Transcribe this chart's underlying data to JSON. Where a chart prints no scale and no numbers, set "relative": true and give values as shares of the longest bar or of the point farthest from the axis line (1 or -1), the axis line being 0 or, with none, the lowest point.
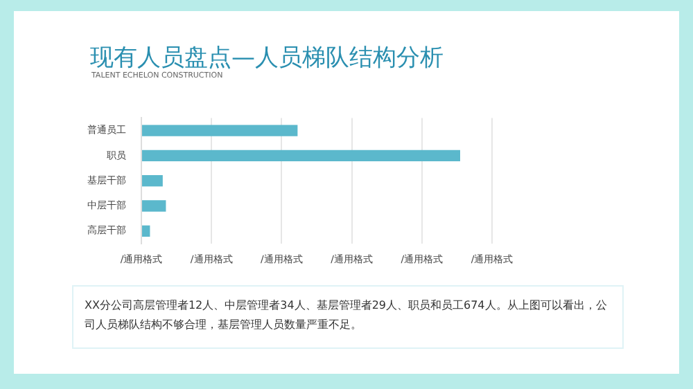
{
  "chart_data": {
    "type": "bar",
    "orientation": "horizontal",
    "relative": true,
    "title": "现有人员盘点—人员梯队结构分析",
    "subtitle": "TALENT ECHELON CONSTRUCTION",
    "categories": [
      "普通员工",
      "职员",
      "基层干部",
      "中层干部",
      "高层干部"
    ],
    "values": [
      0.49,
      1,
      0.067,
      0.077,
      0.027
    ],
    "color": "#5bb8cc",
    "grid": "x",
    "legend": false,
    "annotations": [
      "/通用格式",
      "/通用格式",
      "/通用格式",
      "/通用格式",
      "/通用格式",
      "/通用格式",
      "XX分公司高层管理者12人、中层管理者34人、基层管理者29人、职员和员工674人。从上图可以看出，公司人员梯队结构不够合理，基层管理人员数量严重不足。"
    ]
  }
}
